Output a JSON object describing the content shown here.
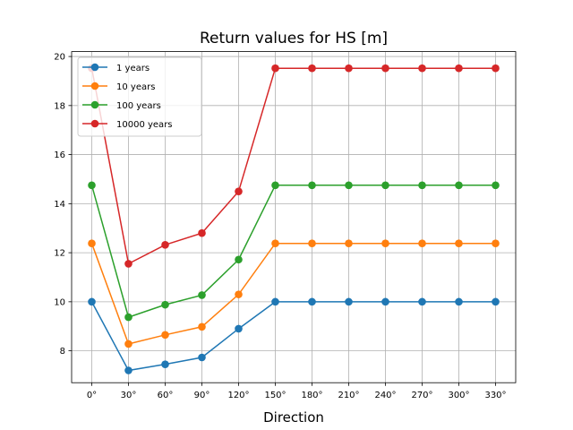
{
  "chart_data": {
    "type": "line",
    "title": "Return values for HS [m]",
    "xlabel": "Direction",
    "ylabel": "",
    "categories": [
      "0°",
      "30°",
      "60°",
      "90°",
      "120°",
      "150°",
      "180°",
      "210°",
      "240°",
      "270°",
      "300°",
      "330°"
    ],
    "ylim": [
      6.7,
      20.2
    ],
    "yticks": [
      8,
      10,
      12,
      14,
      16,
      18,
      20
    ],
    "grid": true,
    "legend_position": "top-left",
    "series": [
      {
        "name": "1 years",
        "color": "#1f77b4",
        "values": [
          10.0,
          7.2,
          7.45,
          7.73,
          8.9,
          10.0,
          10.0,
          10.0,
          10.0,
          10.0,
          10.0,
          10.0
        ]
      },
      {
        "name": "10 years",
        "color": "#ff7f0e",
        "values": [
          12.38,
          8.28,
          8.65,
          8.98,
          10.3,
          12.38,
          12.38,
          12.38,
          12.38,
          12.38,
          12.38,
          12.38
        ]
      },
      {
        "name": "100 years",
        "color": "#2ca02c",
        "values": [
          14.75,
          9.37,
          9.88,
          10.27,
          11.72,
          14.75,
          14.75,
          14.75,
          14.75,
          14.75,
          14.75,
          14.75
        ]
      },
      {
        "name": "10000 years",
        "color": "#d62728",
        "values": [
          19.52,
          11.55,
          12.32,
          12.8,
          14.5,
          19.52,
          19.52,
          19.52,
          19.52,
          19.52,
          19.52,
          19.52
        ]
      }
    ]
  }
}
